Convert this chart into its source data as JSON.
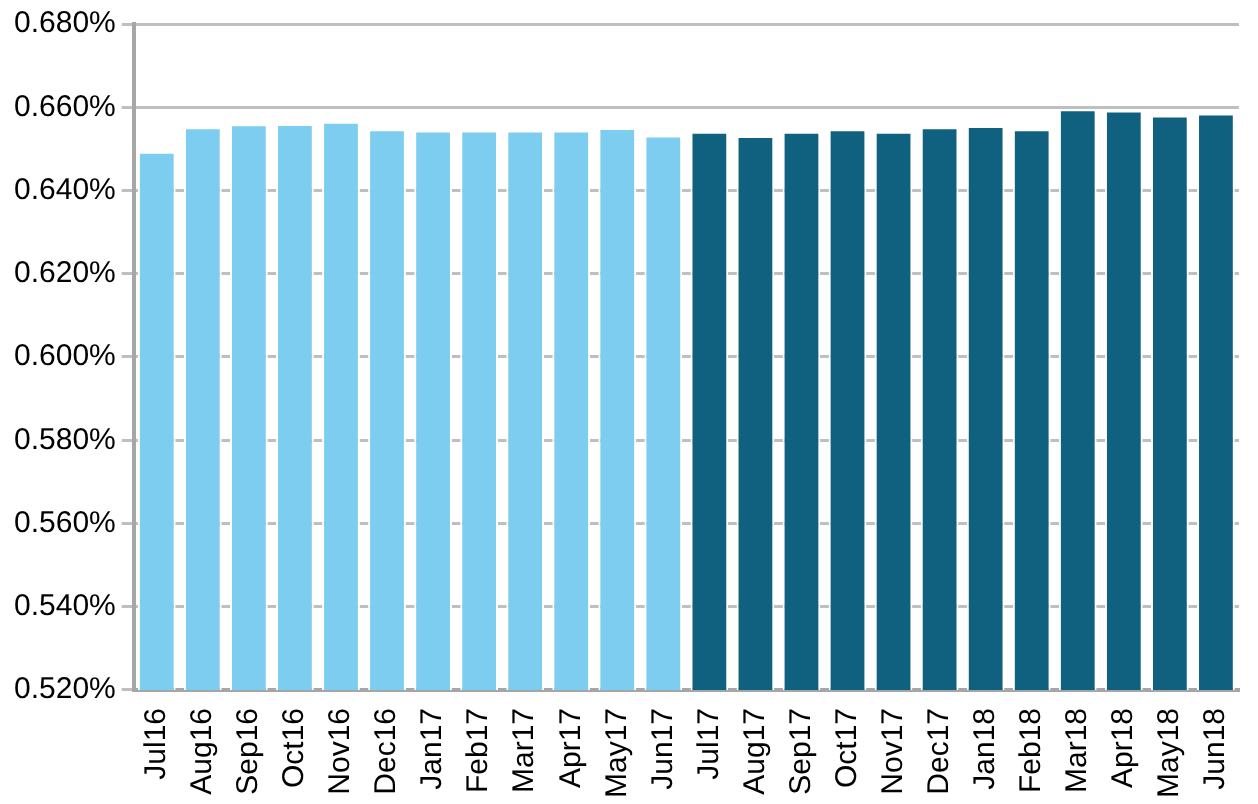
{
  "chart_data": {
    "type": "bar",
    "categories": [
      "Jul16",
      "Aug16",
      "Sep16",
      "Oct16",
      "Nov16",
      "Dec16",
      "Jan17",
      "Feb17",
      "Mar17",
      "Apr17",
      "May17",
      "Jun17",
      "Jul17",
      "Aug17",
      "Sep17",
      "Oct17",
      "Nov17",
      "Dec17",
      "Jan18",
      "Feb18",
      "Mar18",
      "Apr18",
      "May18",
      "Jun18"
    ],
    "values": [
      0.6493,
      0.6552,
      0.6559,
      0.656,
      0.6565,
      0.6547,
      0.6544,
      0.6544,
      0.6544,
      0.6544,
      0.655,
      0.6532,
      0.6541,
      0.6531,
      0.6541,
      0.6547,
      0.6541,
      0.6552,
      0.6555,
      0.6547,
      0.6595,
      0.6592,
      0.658,
      0.6585
    ],
    "colors": [
      "#7dcdf0",
      "#7dcdf0",
      "#7dcdf0",
      "#7dcdf0",
      "#7dcdf0",
      "#7dcdf0",
      "#7dcdf0",
      "#7dcdf0",
      "#7dcdf0",
      "#7dcdf0",
      "#7dcdf0",
      "#7dcdf0",
      "#10607f",
      "#10607f",
      "#10607f",
      "#10607f",
      "#10607f",
      "#10607f",
      "#10607f",
      "#10607f",
      "#10607f",
      "#10607f",
      "#10607f",
      "#10607f"
    ],
    "ylim": [
      0.52,
      0.68
    ],
    "yticks": [
      {
        "value": 0.52,
        "label": "0.520%"
      },
      {
        "value": 0.54,
        "label": "0.540%"
      },
      {
        "value": 0.56,
        "label": "0.560%"
      },
      {
        "value": 0.58,
        "label": "0.580%"
      },
      {
        "value": 0.6,
        "label": "0.600%"
      },
      {
        "value": 0.62,
        "label": "0.620%"
      },
      {
        "value": 0.64,
        "label": "0.640%"
      },
      {
        "value": 0.66,
        "label": "0.660%"
      },
      {
        "value": 0.68,
        "label": "0.680%"
      }
    ],
    "grid": "y",
    "legend": false
  }
}
